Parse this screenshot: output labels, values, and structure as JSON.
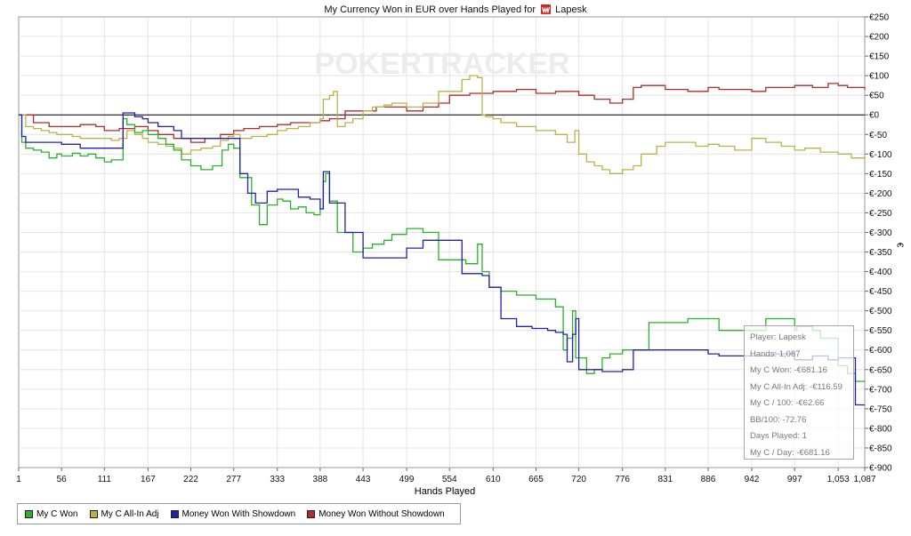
{
  "title": "My Currency Won in EUR over Hands Played for",
  "player_name": "Lapesk",
  "watermark": "POKERTRACKER",
  "colors": {
    "my_c_won": "#29b229",
    "all_in_adj": "#b9b34a",
    "with_showdown": "#2222a8",
    "without_showdown": "#b22a2a"
  },
  "legend": [
    {
      "label": "My C Won",
      "color": "#29b229"
    },
    {
      "label": "My C All-In Adj",
      "color": "#b9b34a"
    },
    {
      "label": "Money Won With Showdown",
      "color": "#2222a8"
    },
    {
      "label": "Money Won Without Showdown",
      "color": "#b22a2a"
    }
  ],
  "tooltip": {
    "player": "Player: Lapesk",
    "hands": "Hands: 1,087",
    "won": "My C Won: -€681.16",
    "all_in": "My C All-In Adj: -€116.59",
    "per100": "My C / 100: -€62.66",
    "bb100": "BB/100: -72.76",
    "days": "Days Played: 1",
    "per_day": "My C / Day: -€681.16"
  },
  "chart_data": {
    "type": "line",
    "xlabel": "Hands Played",
    "ylabel": "€",
    "xlim": [
      1,
      1087
    ],
    "ylim": [
      -900,
      250
    ],
    "x_ticks": [
      1,
      56,
      111,
      167,
      222,
      277,
      333,
      388,
      443,
      499,
      554,
      610,
      665,
      720,
      776,
      831,
      886,
      942,
      997,
      1053,
      1087
    ],
    "x_tick_labels": [
      "1",
      "56",
      "111",
      "167",
      "222",
      "277",
      "333",
      "388",
      "443",
      "499",
      "554",
      "610",
      "665",
      "720",
      "776",
      "831",
      "886",
      "942",
      "997",
      "1,053",
      "1,087"
    ],
    "y_ticks": [
      250,
      200,
      150,
      100,
      50,
      0,
      -50,
      -100,
      -150,
      -200,
      -250,
      -300,
      -350,
      -400,
      -450,
      -500,
      -550,
      -600,
      -650,
      -700,
      -750,
      -800,
      -850,
      -900
    ],
    "y_tick_labels": [
      "€250",
      "€200",
      "€150",
      "€100",
      "€50",
      "€0",
      "€-50",
      "€-100",
      "€-150",
      "€-200",
      "€-250",
      "€-300",
      "€-350",
      "€-400",
      "€-450",
      "€-500",
      "€-550",
      "€-600",
      "€-650",
      "€-700",
      "€-750",
      "€-800",
      "€-850",
      "€-900"
    ],
    "grid": true,
    "legend_position": "bottom-left",
    "series": [
      {
        "name": "My C Won",
        "color": "#29b229",
        "x": [
          1,
          5,
          10,
          20,
          30,
          40,
          50,
          56,
          70,
          80,
          90,
          100,
          111,
          120,
          135,
          140,
          150,
          160,
          167,
          180,
          190,
          200,
          210,
          222,
          235,
          250,
          262,
          270,
          277,
          285,
          300,
          310,
          320,
          333,
          340,
          350,
          360,
          370,
          380,
          388,
          392,
          395,
          400,
          410,
          420,
          430,
          443,
          455,
          470,
          480,
          499,
          520,
          540,
          554,
          575,
          590,
          596,
          605,
          620,
          640,
          665,
          690,
          700,
          705,
          712,
          716,
          720,
          730,
          740,
          750,
          760,
          776,
          800,
          810,
          831,
          860,
          886,
          900,
          942,
          960,
          997,
          1000,
          1010,
          1020,
          1030,
          1053,
          1065,
          1075,
          1087
        ],
        "y": [
          0,
          -70,
          -85,
          -90,
          -95,
          -110,
          -100,
          -105,
          -98,
          -105,
          -100,
          -110,
          -120,
          -115,
          -10,
          -25,
          -45,
          -40,
          -50,
          -60,
          -75,
          -90,
          -115,
          -130,
          -140,
          -130,
          -90,
          -75,
          -85,
          -160,
          -230,
          -280,
          -230,
          -215,
          -220,
          -240,
          -235,
          -250,
          -255,
          -240,
          -170,
          -150,
          -220,
          -300,
          -300,
          -350,
          -340,
          -330,
          -320,
          -305,
          -290,
          -300,
          -370,
          -370,
          -380,
          -330,
          -400,
          -440,
          -450,
          -460,
          -470,
          -490,
          -600,
          -570,
          -500,
          -620,
          -620,
          -660,
          -650,
          -620,
          -610,
          -600,
          -600,
          -530,
          -530,
          -520,
          -520,
          -550,
          -550,
          -520,
          -550,
          -540,
          -540,
          -550,
          -570,
          -640,
          -660,
          -680,
          -681
        ]
      },
      {
        "name": "My C All-In Adj",
        "color": "#b9b34a",
        "x": [
          1,
          10,
          20,
          30,
          40,
          50,
          56,
          70,
          80,
          90,
          100,
          111,
          120,
          130,
          140,
          150,
          160,
          167,
          180,
          190,
          200,
          210,
          222,
          235,
          250,
          260,
          270,
          277,
          285,
          300,
          310,
          320,
          333,
          345,
          360,
          375,
          385,
          388,
          392,
          400,
          405,
          410,
          420,
          430,
          443,
          455,
          470,
          480,
          499,
          520,
          540,
          554,
          570,
          580,
          590,
          596,
          600,
          610,
          620,
          640,
          665,
          690,
          705,
          715,
          720,
          730,
          740,
          750,
          760,
          776,
          790,
          800,
          820,
          831,
          850,
          870,
          886,
          900,
          920,
          942,
          960,
          980,
          997,
          1010,
          1030,
          1053,
          1070,
          1087
        ],
        "y": [
          0,
          -30,
          -35,
          -40,
          -45,
          -50,
          -50,
          -55,
          -60,
          -60,
          -60,
          -60,
          -65,
          -60,
          -40,
          -50,
          -60,
          -70,
          -75,
          -80,
          -85,
          -100,
          -90,
          -85,
          -80,
          -65,
          -55,
          -50,
          -60,
          -55,
          -55,
          -50,
          -40,
          -35,
          -30,
          -20,
          -20,
          -10,
          40,
          50,
          60,
          -30,
          -20,
          -10,
          10,
          20,
          25,
          30,
          20,
          30,
          60,
          60,
          90,
          100,
          95,
          0,
          -5,
          -10,
          -20,
          -30,
          -40,
          -50,
          -70,
          -40,
          -100,
          -120,
          -130,
          -140,
          -150,
          -140,
          -130,
          -100,
          -80,
          -70,
          -70,
          -80,
          -75,
          -80,
          -90,
          -60,
          -70,
          -80,
          -90,
          -85,
          -95,
          -100,
          -110,
          -116
        ]
      },
      {
        "name": "Money Won With Showdown",
        "color": "#2222a8",
        "x": [
          1,
          5,
          10,
          20,
          40,
          56,
          80,
          100,
          111,
          130,
          135,
          140,
          150,
          160,
          167,
          180,
          200,
          210,
          222,
          240,
          260,
          277,
          285,
          295,
          305,
          320,
          333,
          345,
          360,
          375,
          388,
          392,
          400,
          420,
          443,
          460,
          480,
          499,
          520,
          540,
          554,
          570,
          590,
          596,
          605,
          620,
          640,
          660,
          680,
          690,
          700,
          705,
          712,
          716,
          720,
          735,
          750,
          776,
          790,
          800,
          831,
          860,
          886,
          900,
          942,
          970,
          997,
          1020,
          1040,
          1053,
          1075,
          1087
        ],
        "y": [
          0,
          -55,
          -70,
          -70,
          -70,
          -75,
          -85,
          -85,
          -85,
          -85,
          5,
          5,
          -5,
          -10,
          -20,
          -30,
          -40,
          -60,
          -60,
          -60,
          -60,
          -60,
          -150,
          -200,
          -225,
          -195,
          -190,
          -190,
          -210,
          -215,
          -240,
          -145,
          -225,
          -300,
          -365,
          -365,
          -365,
          -340,
          -320,
          -320,
          -320,
          -405,
          -405,
          -410,
          -440,
          -520,
          -540,
          -545,
          -550,
          -555,
          -560,
          -630,
          -560,
          -520,
          -650,
          -650,
          -655,
          -650,
          -600,
          -600,
          -600,
          -600,
          -610,
          -615,
          -615,
          -610,
          -625,
          -615,
          -625,
          -620,
          -740,
          -740
        ]
      },
      {
        "name": "Money Won Without Showdown",
        "color": "#b22a2a",
        "x": [
          1,
          20,
          40,
          56,
          80,
          100,
          111,
          130,
          150,
          167,
          180,
          200,
          222,
          240,
          260,
          277,
          290,
          310,
          333,
          350,
          370,
          388,
          400,
          420,
          443,
          460,
          480,
          499,
          520,
          540,
          554,
          580,
          610,
          640,
          665,
          690,
          720,
          740,
          760,
          776,
          790,
          800,
          831,
          860,
          886,
          900,
          942,
          960,
          997,
          1020,
          1040,
          1053,
          1065,
          1087
        ],
        "y": [
          0,
          -20,
          -30,
          -30,
          -25,
          -30,
          -40,
          -35,
          -30,
          -40,
          -50,
          -60,
          -70,
          -60,
          -50,
          -40,
          -35,
          -30,
          -25,
          -20,
          -20,
          -15,
          -10,
          10,
          10,
          20,
          20,
          10,
          20,
          30,
          50,
          55,
          60,
          65,
          55,
          60,
          50,
          40,
          30,
          40,
          70,
          75,
          65,
          60,
          70,
          65,
          60,
          70,
          75,
          70,
          80,
          75,
          70,
          65
        ]
      }
    ]
  }
}
